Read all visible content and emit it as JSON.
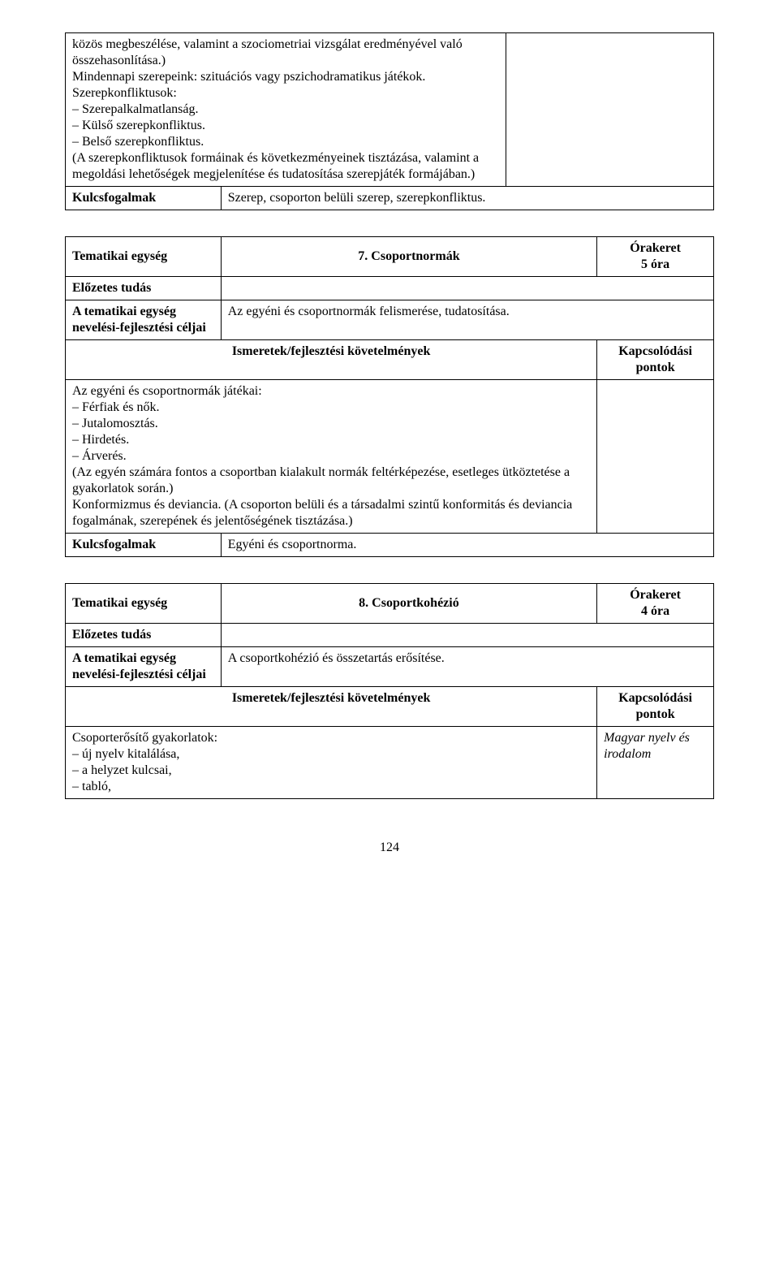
{
  "table1": {
    "topcell": {
      "paragraphs": [
        "közös megbeszélése, valamint a szociometriai vizsgálat eredményével való összehasonlítása.)",
        "Mindennapi szerepeink: szituációs vagy pszichodramatikus játékok.",
        "Szerepkonfliktusok:"
      ],
      "bullets": [
        "Szerepalkalmatlanság.",
        "Külső szerepkonfliktus.",
        "Belső szerepkonfliktus."
      ],
      "afterbullets": "(A szerepkonfliktusok formáinak és következményeinek tisztázása, valamint a megoldási lehetőségek megjelenítése és tudatosítása szerepjáték formájában.)"
    },
    "kulcs_label": "Kulcsfogalmak",
    "kulcs_value": "Szerep, csoporton belüli szerep, szerepkonfliktus."
  },
  "table2": {
    "tematikai_label": "Tematikai egység",
    "title": "7. Csoportnormák",
    "orakeret_label": "Órakeret",
    "orakeret_value": "5 óra",
    "elozetes_label": "Előzetes tudás",
    "celok_label": "A tematikai egység nevelési-fejlesztési céljai",
    "celok_value": "Az egyéni és csoportnormák felismerése, tudatosítása.",
    "ismeretek_label": "Ismeretek/fejlesztési követelmények",
    "kapcs_label": "Kapcsolódási pontok",
    "body": {
      "lead": "Az egyéni és csoportnormák játékai:",
      "bullets": [
        "Férfiak és nők.",
        "Jutalomosztás.",
        "Hirdetés.",
        "Árverés."
      ],
      "paras": [
        "(Az egyén számára fontos a csoportban kialakult normák feltérképezése, esetleges ütköztetése a gyakorlatok során.)",
        "Konformizmus és deviancia. (A csoporton belüli és a társadalmi szintű konformitás és deviancia fogalmának, szerepének és jelentőségének tisztázása.)"
      ]
    },
    "kulcs_label": "Kulcsfogalmak",
    "kulcs_value": "Egyéni és csoportnorma."
  },
  "table3": {
    "tematikai_label": "Tematikai egység",
    "title": "8. Csoportkohézió",
    "orakeret_label": "Órakeret",
    "orakeret_value": "4 óra",
    "elozetes_label": "Előzetes tudás",
    "celok_label": "A tematikai egység nevelési-fejlesztési céljai",
    "celok_value": "A csoportkohézió és összetartás erősítése.",
    "ismeretek_label": "Ismeretek/fejlesztési követelmények",
    "kapcs_label": "Kapcsolódási pontok",
    "body_lead": "Csoporterősítő gyakorlatok:",
    "body_bullets": [
      "új nyelv kitalálása,",
      "a helyzet kulcsai,",
      "tabló,"
    ],
    "kapcs_value": "Magyar nyelv és irodalom"
  },
  "page_number": "124"
}
